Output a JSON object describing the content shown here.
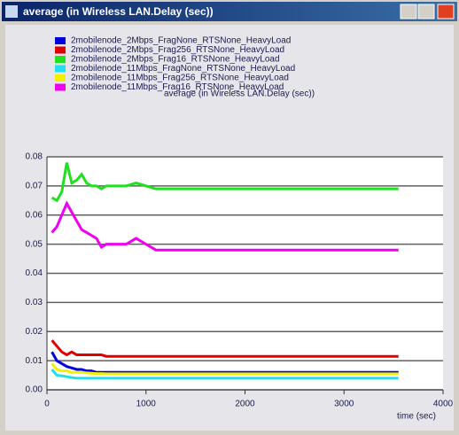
{
  "window": {
    "title": "average (in Wireless LAN.Delay (sec))"
  },
  "chart_data": {
    "type": "line",
    "title": "average (in Wireless LAN.Delay (sec))",
    "xlabel": "time (sec)",
    "x": [
      50,
      100,
      150,
      200,
      250,
      300,
      350,
      400,
      450,
      500,
      550,
      600,
      700,
      800,
      900,
      1000,
      1100,
      2000,
      3000,
      3550
    ],
    "series": [
      {
        "name": "2mobilenode_2Mbps_FragNone_RTSNone_HeavyLoad",
        "color": "#0000e0",
        "values": [
          0.013,
          0.01,
          0.009,
          0.008,
          0.0075,
          0.007,
          0.007,
          0.0065,
          0.0065,
          0.006,
          0.006,
          0.006,
          0.006,
          0.006,
          0.006,
          0.006,
          0.006,
          0.006,
          0.006,
          0.006
        ]
      },
      {
        "name": "2mobilenode_2Mbps_Frag256_RTSNone_HeavyLoad",
        "color": "#e00000",
        "values": [
          0.017,
          0.015,
          0.013,
          0.012,
          0.013,
          0.012,
          0.012,
          0.012,
          0.012,
          0.012,
          0.012,
          0.0115,
          0.0115,
          0.0115,
          0.0115,
          0.0115,
          0.0115,
          0.0115,
          0.0115,
          0.0115
        ]
      },
      {
        "name": "2mobilenode_2Mbps_Frag16_RTSNone_HeavyLoad",
        "color": "#20e020",
        "values": [
          0.066,
          0.065,
          0.068,
          0.078,
          0.071,
          0.072,
          0.074,
          0.071,
          0.07,
          0.07,
          0.069,
          0.07,
          0.07,
          0.07,
          0.071,
          0.07,
          0.069,
          0.069,
          0.069,
          0.069
        ]
      },
      {
        "name": "2mobilenode_11Mbps_FragNone_RTSNone_HeavyLoad",
        "color": "#20e0f0",
        "values": [
          0.007,
          0.005,
          0.0048,
          0.0045,
          0.0042,
          0.004,
          0.004,
          0.004,
          0.004,
          0.004,
          0.004,
          0.004,
          0.004,
          0.004,
          0.004,
          0.004,
          0.004,
          0.004,
          0.004,
          0.004
        ]
      },
      {
        "name": "2mobilenode_11Mbps_Frag256_RTSNone_HeavyLoad",
        "color": "#f0f000",
        "values": [
          0.009,
          0.007,
          0.0065,
          0.0065,
          0.006,
          0.006,
          0.006,
          0.0058,
          0.0057,
          0.0056,
          0.0056,
          0.0055,
          0.0055,
          0.0055,
          0.0055,
          0.0055,
          0.0055,
          0.0055,
          0.0055,
          0.0055
        ]
      },
      {
        "name": "2mobilenode_11Mbps_Frag16_RTSNone_HeavyLoad",
        "color": "#f000f0",
        "values": [
          0.054,
          0.056,
          0.06,
          0.064,
          0.061,
          0.058,
          0.055,
          0.054,
          0.053,
          0.052,
          0.049,
          0.05,
          0.05,
          0.05,
          0.052,
          0.05,
          0.048,
          0.048,
          0.048,
          0.048
        ]
      }
    ],
    "xlim": [
      0,
      4000
    ],
    "xticks": [
      0,
      1000,
      2000,
      3000,
      4000
    ],
    "ylim": [
      0,
      0.08
    ],
    "yticks": [
      {
        "value": 0,
        "label": "0.00"
      },
      {
        "value": 0.01,
        "label": "0.01"
      },
      {
        "value": 0.02,
        "label": "0.02"
      },
      {
        "value": 0.03,
        "label": "0.03"
      },
      {
        "value": 0.04,
        "label": "0.04"
      },
      {
        "value": 0.05,
        "label": "0.05"
      },
      {
        "value": 0.06,
        "label": "0.06"
      },
      {
        "value": 0.07,
        "label": "0.07"
      },
      {
        "value": 0.08,
        "label": "0.08"
      }
    ],
    "grid": true
  }
}
